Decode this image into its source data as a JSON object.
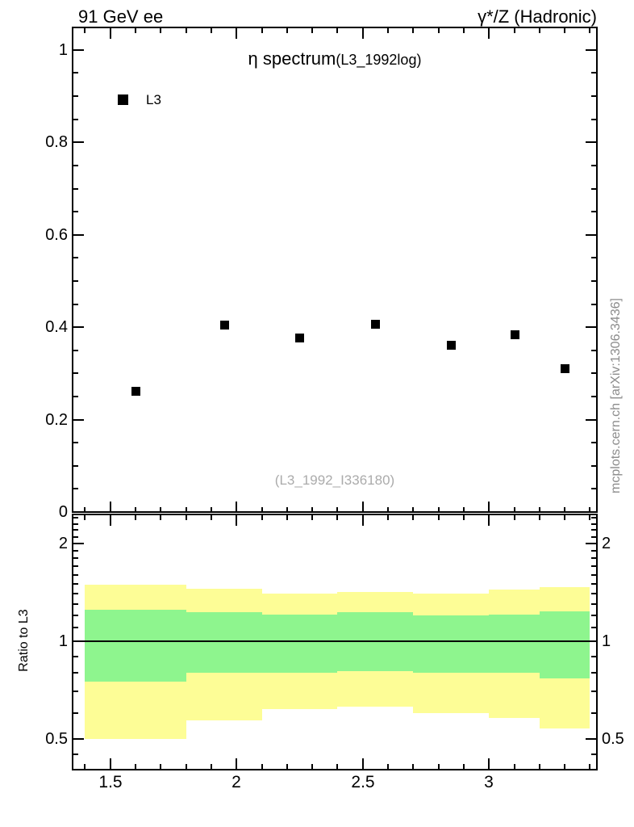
{
  "header": {
    "left": "91 GeV ee",
    "right": "γ*/Z (Hadronic)"
  },
  "plot": {
    "title": "η spectrum",
    "title_suffix": "(L3_1992log)",
    "watermark": "(L3_1992_I336180)",
    "credit": "mcplots.cern.ch [arXiv:1306.3436]",
    "legend": {
      "label": "L3",
      "marker": "filled-square",
      "marker_color": "#000000"
    }
  },
  "axes": {
    "x": {
      "range": [
        1.354,
        3.424
      ],
      "tick_labels": [
        "1.5",
        "2",
        "2.5",
        "3"
      ],
      "tick_values": [
        1.5,
        2,
        2.5,
        3
      ],
      "minor_start": 1.4,
      "minor_end": 3.4,
      "minor_step": 0.1
    },
    "y_main": {
      "range": [
        0,
        1.047
      ],
      "tick_labels": [
        "1",
        "0.8",
        "0.6",
        "0.4",
        "0.2",
        "0"
      ],
      "tick_values": [
        1,
        0.8,
        0.6,
        0.4,
        0.2,
        0
      ],
      "minor_step": 0.05
    },
    "y_ratio": {
      "label": "Ratio to L3",
      "scale": "log",
      "range": [
        0.405,
        2.445
      ],
      "tick_labels": [
        "2",
        "1",
        "0.5"
      ],
      "tick_values": [
        2,
        1,
        0.5
      ],
      "minor_values": [
        0.45,
        0.5,
        0.6,
        0.7,
        0.8,
        0.9,
        1.0,
        1.1,
        1.2,
        1.3,
        1.4,
        1.5,
        1.6,
        1.7,
        1.8,
        1.9,
        2.0,
        2.1,
        2.2,
        2.3,
        2.4
      ]
    }
  },
  "chart_data": {
    "type": "scatter",
    "title": "η spectrum (L3_1992log)",
    "xlabel": "",
    "ylabel": "",
    "xlim": [
      1.354,
      3.424
    ],
    "main_ylim": [
      0,
      1.047
    ],
    "grid": false,
    "legend_position": "top-left-inside",
    "series": [
      {
        "name": "L3",
        "marker": "filled-square",
        "color": "#000000",
        "points": [
          [
            1.6,
            0.262
          ],
          [
            1.95,
            0.405
          ],
          [
            2.25,
            0.377
          ],
          [
            2.55,
            0.408
          ],
          [
            2.85,
            0.362
          ],
          [
            3.1,
            0.385
          ],
          [
            3.3,
            0.312
          ]
        ]
      }
    ],
    "ratio_panel": {
      "ylabel": "Ratio to L3",
      "yscale": "log",
      "ylim": [
        0.405,
        2.445
      ],
      "reference_line": 1.0,
      "bin_edges": [
        1.4,
        1.8,
        2.1,
        2.4,
        2.7,
        3.0,
        3.2,
        3.4
      ],
      "yellow_band": [
        [
          0.5,
          1.49
        ],
        [
          0.57,
          1.45
        ],
        [
          0.62,
          1.4
        ],
        [
          0.63,
          1.42
        ],
        [
          0.6,
          1.4
        ],
        [
          0.58,
          1.44
        ],
        [
          0.54,
          1.47
        ]
      ],
      "green_band": [
        [
          0.75,
          1.25
        ],
        [
          0.8,
          1.23
        ],
        [
          0.8,
          1.21
        ],
        [
          0.81,
          1.23
        ],
        [
          0.8,
          1.2
        ],
        [
          0.8,
          1.21
        ],
        [
          0.77,
          1.24
        ]
      ]
    }
  },
  "colors": {
    "yellow_band": "#fdfd96",
    "green_band": "#8ef58e",
    "marker": "#000000",
    "watermark": "#ababab",
    "credit": "#8c8c8c"
  }
}
